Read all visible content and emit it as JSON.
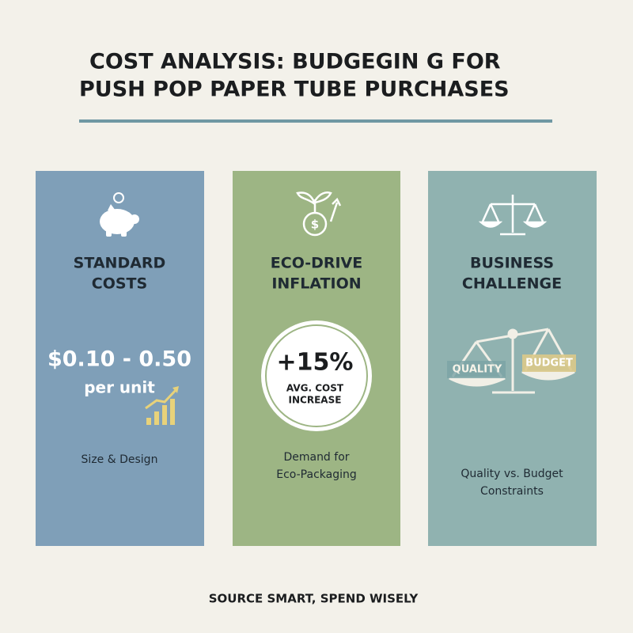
{
  "header": {
    "title_lines": [
      "COST ANALYSIS: BUDGEGIN G FOR",
      "PUSH POP PAPER TUBE PURCHASES"
    ]
  },
  "cards": [
    {
      "title_lines": [
        "STANDARD",
        "COSTS"
      ],
      "figure": "$0.10 - 0.50",
      "figure_unit": "per unit",
      "caption_lines": [
        "Size & Design"
      ]
    },
    {
      "title_lines": [
        "ECO-DRIVE",
        "INFLATION"
      ],
      "figure": "+15%",
      "figure_note_lines": [
        "AVG. COST",
        "INCREASE"
      ],
      "caption_lines": [
        "Demand for",
        "Eco-Packaging"
      ]
    },
    {
      "title_lines": [
        "BUSINESS",
        "CHALLENGE"
      ],
      "scale_labels": [
        "QUALITY",
        "BUDGET"
      ],
      "caption_lines": [
        "Quality vs. Budget",
        "Constraints"
      ]
    }
  ],
  "footer": {
    "tagline": "SOURCE SMART, SPEND WISELY"
  }
}
